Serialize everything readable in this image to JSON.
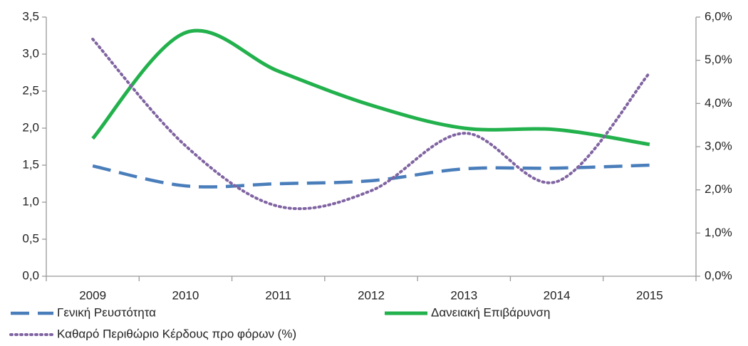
{
  "chart_data": {
    "type": "line",
    "categories": [
      "2009",
      "2010",
      "2011",
      "2012",
      "2013",
      "2014",
      "2015"
    ],
    "series": [
      {
        "name": "Γενική Ρευστότητα",
        "color": "#4a7ebb",
        "style": "dashed",
        "values": [
          1.49,
          1.22,
          1.25,
          1.29,
          1.45,
          1.46,
          1.5
        ]
      },
      {
        "name": "Δανειακή Επιβάρυνση",
        "color": "#22b14c",
        "style": "solid",
        "values": [
          1.86,
          3.29,
          2.77,
          2.31,
          2.0,
          1.98,
          1.78
        ]
      },
      {
        "name": "Καθαρό Περιθώριο Κέρδους προ φόρων (%)",
        "color": "#8064a2",
        "style": "dotted",
        "axis": "y2",
        "values": [
          5.49,
          3.02,
          1.62,
          1.98,
          3.31,
          2.19,
          4.71
        ]
      }
    ],
    "ylim": [
      0,
      3.5
    ],
    "yticks": [
      {
        "value": 0,
        "label": "0,0"
      },
      {
        "value": 0.5,
        "label": "0,5"
      },
      {
        "value": 1,
        "label": "1,0"
      },
      {
        "value": 1.5,
        "label": "1,5"
      },
      {
        "value": 2,
        "label": "2,0"
      },
      {
        "value": 2.5,
        "label": "2,5"
      },
      {
        "value": 3,
        "label": "3,0"
      },
      {
        "value": 3.5,
        "label": "3,5"
      }
    ],
    "y2lim": [
      0,
      6
    ],
    "y2ticks": [
      {
        "value": 0,
        "label": "0,0%"
      },
      {
        "value": 1,
        "label": "1,0%"
      },
      {
        "value": 2,
        "label": "2,0%"
      },
      {
        "value": 3,
        "label": "3,0%"
      },
      {
        "value": 4,
        "label": "4,0%"
      },
      {
        "value": 5,
        "label": "5,0%"
      },
      {
        "value": 6,
        "label": "6,0%"
      }
    ],
    "grid": false,
    "smooth": true
  }
}
